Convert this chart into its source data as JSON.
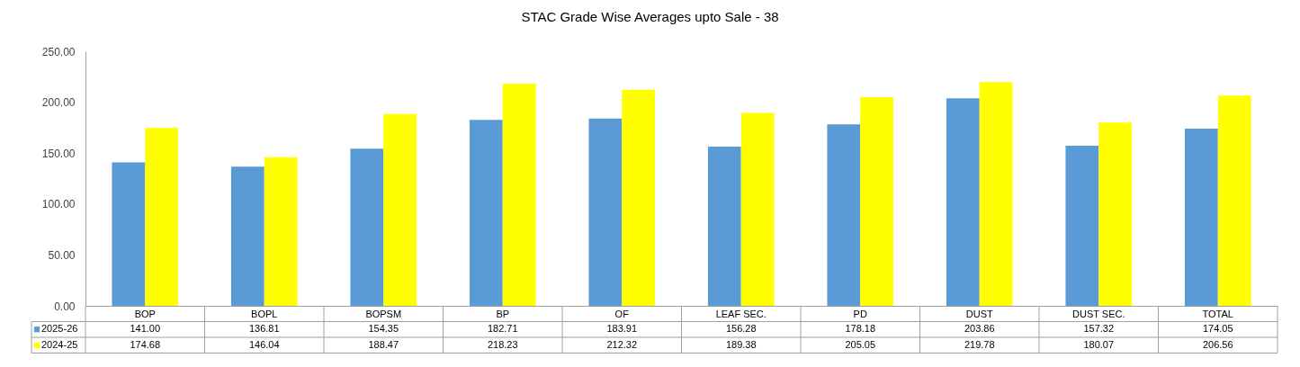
{
  "chart_data": {
    "type": "bar",
    "title": "STAC Grade Wise Averages upto Sale - 38",
    "categories": [
      "BOP",
      "BOPL",
      "BOPSM",
      "BP",
      "OF",
      "LEAF SEC.",
      "PD",
      "DUST",
      "DUST SEC.",
      "TOTAL"
    ],
    "series": [
      {
        "name": "2025-26",
        "color": "#5b9bd5",
        "values": [
          141.0,
          136.81,
          154.35,
          182.71,
          183.91,
          156.28,
          178.18,
          203.86,
          157.32,
          174.05
        ],
        "value_labels": [
          "141.00",
          "136.81",
          "154.35",
          "182.71",
          "183.91",
          "156.28",
          "178.18",
          "203.86",
          "157.32",
          "174.05"
        ]
      },
      {
        "name": "2024-25",
        "color": "#ffff00",
        "values": [
          174.68,
          146.04,
          188.47,
          218.23,
          212.32,
          189.38,
          205.05,
          219.78,
          180.07,
          206.56
        ],
        "value_labels": [
          "174.68",
          "146.04",
          "188.47",
          "218.23",
          "212.32",
          "189.38",
          "205.05",
          "219.78",
          "180.07",
          "206.56"
        ]
      }
    ],
    "ylim": [
      0,
      250
    ],
    "yticks": [
      {
        "value": 0,
        "label": "0.00"
      },
      {
        "value": 50,
        "label": "50.00"
      },
      {
        "value": 100,
        "label": "100.00"
      },
      {
        "value": 150,
        "label": "150.00"
      },
      {
        "value": 200,
        "label": "200.00"
      },
      {
        "value": 250,
        "label": "250.00"
      }
    ],
    "legend": "bottom left"
  }
}
